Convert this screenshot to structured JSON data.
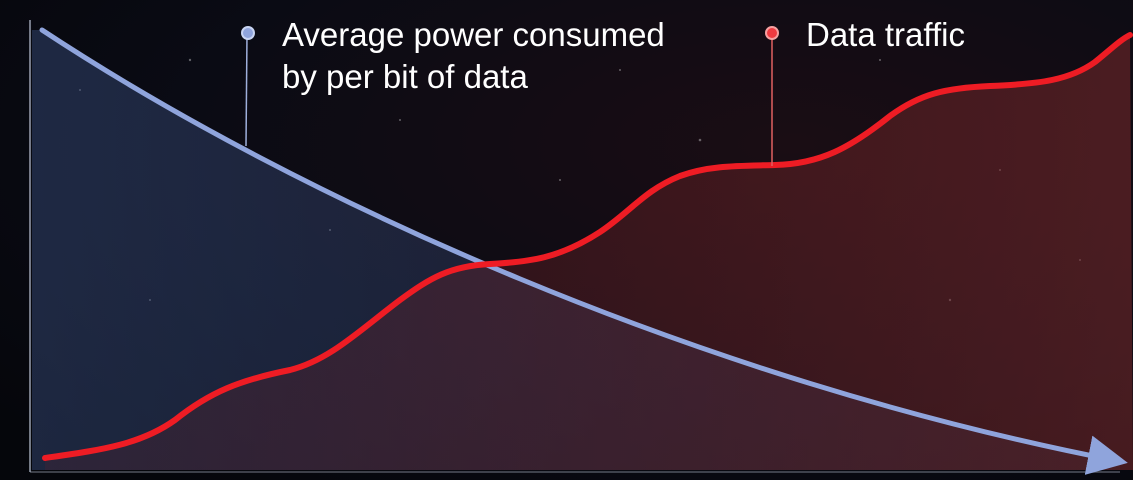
{
  "legend": {
    "items": [
      {
        "lines": [
          "Average power consumed",
          "by per bit of data"
        ]
      },
      {
        "lines": [
          "Data traffic"
        ]
      }
    ]
  }
}
